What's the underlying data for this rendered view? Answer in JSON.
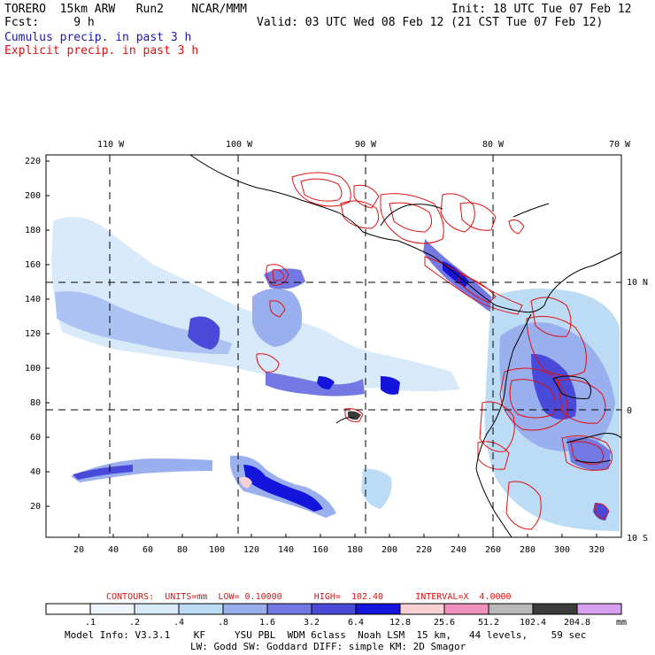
{
  "header": {
    "left_line1": "TORERO  15km ARW   Run2    NCAR/MMM",
    "left_line2": "Fcst:     9 h",
    "right_line1": "Init: 18 UTC Tue 07 Feb 12",
    "right_line2": "Valid: 03 UTC Wed 08 Feb 12 (21 CST Tue 07 Feb 12)",
    "field1": "Cumulus precip. in past 3 h",
    "field2": "Explicit precip. in past 3 h",
    "field1_color": "#1a1aa8",
    "field2_color": "#e01010"
  },
  "map": {
    "lon_labels": [
      "110 W",
      "100 W",
      "90 W",
      "80 W",
      "70 W"
    ],
    "lat_labels": [
      "10 N",
      "0",
      "10 S"
    ],
    "y_ticks": [
      "220",
      "200",
      "180",
      "160",
      "140",
      "120",
      "100",
      "80",
      "60",
      "40",
      "20"
    ],
    "x_ticks": [
      "20",
      "40",
      "60",
      "80",
      "100",
      "120",
      "140",
      "160",
      "180",
      "200",
      "220",
      "240",
      "260",
      "280",
      "300",
      "320"
    ]
  },
  "contour_info": "CONTOURS:  UNITS=mm  LOW= 0.10000      HIGH=  102.40      INTERVAL=X  4.0000",
  "colorbar": {
    "labels": [
      ".1",
      ".2",
      ".4",
      ".8",
      "1.6",
      "3.2",
      "6.4",
      "12.8",
      "25.6",
      "51.2",
      "102.4",
      "204.8"
    ],
    "unit": "mm",
    "colors": [
      "#ffffff",
      "#eef5fc",
      "#d8e9fa",
      "#bcdcf5",
      "#9ab0ee",
      "#7478e2",
      "#4a4ada",
      "#1414dc",
      "#f8d0d4",
      "#f090bc",
      "#b8b8b8",
      "#3c3c3c",
      "#d8a0f0"
    ]
  },
  "model_info": {
    "line1": "Model Info: V3.3.1    KF     YSU PBL  WDM 6class  Noah LSM  15 km,   44 levels,    59 sec",
    "line2": "LW: Godd SW: Goddard DIFF: simple KM: 2D Smagor"
  }
}
